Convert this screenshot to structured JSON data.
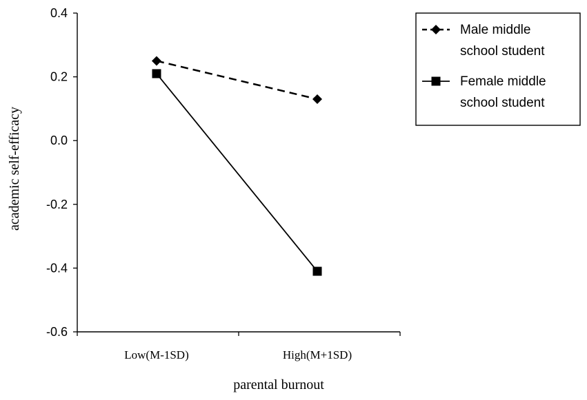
{
  "chart_data": {
    "type": "line",
    "title": "",
    "xlabel": "parental burnout",
    "ylabel": "academic self-efficacy",
    "categories": [
      "Low(M-1SD)",
      "High(M+1SD)"
    ],
    "ylim": [
      -0.6,
      0.4
    ],
    "yticks": [
      "0.4",
      "0.2",
      "0.0",
      "-0.2",
      "-0.4",
      "-0.6"
    ],
    "ytick_values": [
      0.4,
      0.2,
      0.0,
      -0.2,
      -0.4,
      -0.6
    ],
    "grid": false,
    "legend_position": "top-right, outside plot",
    "series": [
      {
        "name_lines": [
          "Male middle",
          "school student"
        ],
        "values": [
          0.25,
          0.13
        ],
        "marker": "diamond",
        "line_style": "dashed",
        "color": "#000000"
      },
      {
        "name_lines": [
          "Female middle",
          "school student"
        ],
        "values": [
          0.21,
          -0.41
        ],
        "marker": "square",
        "line_style": "solid",
        "color": "#000000"
      }
    ]
  }
}
